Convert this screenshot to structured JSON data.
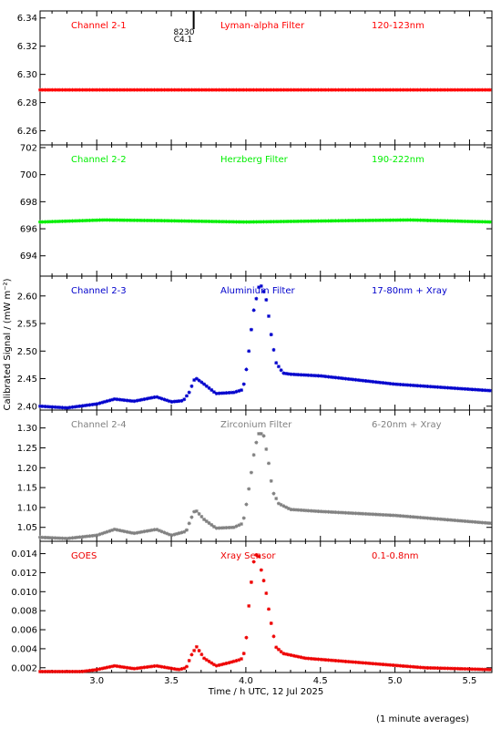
{
  "colors": {
    "axis": "#000000",
    "ch21": "#ff0000",
    "ch22": "#00ee00",
    "ch23": "#0000cc",
    "ch24": "#808080",
    "goes": "#ee0000"
  },
  "texts": {
    "xlabel": "Time / h UTC, 12 Jul 2025",
    "ylabel": "Calibrated Signal / (mW m⁻²)",
    "footer": "(1 minute averages)",
    "flare_id": "8230",
    "flare_class": "C4.1"
  },
  "chart_data": {
    "type": "scatter",
    "title": "",
    "xlabel": "Time / h UTC, 12 Jul 2025",
    "ylabel": "Calibrated Signal / (mW m⁻²)",
    "xlim": [
      2.62,
      5.65
    ],
    "x_ticks": [
      "3.0",
      "3.5",
      "4.0",
      "4.5",
      "5.0",
      "5.5"
    ],
    "x_tick_values": [
      3.0,
      3.5,
      4.0,
      4.5,
      5.0,
      5.5
    ],
    "flare_marker_time": 3.65,
    "panels": [
      {
        "channel": "Channel 2-1",
        "filter": "Lyman-alpha Filter",
        "band": "120-123nm",
        "color_key": "ch21",
        "ylim": [
          6.25,
          6.345
        ],
        "y_ticks": [
          "6.34",
          "6.32",
          "6.30",
          "6.28",
          "6.26"
        ],
        "y_tick_values": [
          6.34,
          6.32,
          6.3,
          6.28,
          6.26
        ],
        "points": [
          [
            2.62,
            6.289
          ],
          [
            3.0,
            6.289
          ],
          [
            3.5,
            6.289
          ],
          [
            4.0,
            6.289
          ],
          [
            4.5,
            6.289
          ],
          [
            5.0,
            6.289
          ],
          [
            5.65,
            6.289
          ]
        ]
      },
      {
        "channel": "Channel 2-2",
        "filter": "Herzberg Filter",
        "band": "190-222nm",
        "color_key": "ch22",
        "ylim": [
          692.5,
          702.2
        ],
        "y_ticks": [
          "702",
          "700",
          "698",
          "696",
          "694"
        ],
        "y_tick_values": [
          702,
          700,
          698,
          696,
          694
        ],
        "points": [
          [
            2.62,
            696.5
          ],
          [
            3.05,
            696.65
          ],
          [
            3.43,
            696.6
          ],
          [
            4.0,
            696.5
          ],
          [
            4.68,
            696.6
          ],
          [
            5.1,
            696.65
          ],
          [
            5.65,
            696.5
          ]
        ]
      },
      {
        "channel": "Channel 2-3",
        "filter": "Aluminium Filter",
        "band": "17-80nm + Xray",
        "color_key": "ch23",
        "ylim": [
          2.393,
          2.636
        ],
        "y_ticks": [
          "2.60",
          "2.55",
          "2.50",
          "2.45",
          "2.40"
        ],
        "y_tick_values": [
          2.6,
          2.55,
          2.5,
          2.45,
          2.4
        ],
        "points": [
          [
            2.62,
            2.4
          ],
          [
            2.8,
            2.397
          ],
          [
            3.0,
            2.404
          ],
          [
            3.12,
            2.413
          ],
          [
            3.25,
            2.409
          ],
          [
            3.4,
            2.417
          ],
          [
            3.5,
            2.408
          ],
          [
            3.58,
            2.41
          ],
          [
            3.62,
            2.425
          ],
          [
            3.66,
            2.452
          ],
          [
            3.72,
            2.44
          ],
          [
            3.8,
            2.423
          ],
          [
            3.92,
            2.425
          ],
          [
            3.98,
            2.43
          ],
          [
            4.0,
            2.46
          ],
          [
            4.02,
            2.5
          ],
          [
            4.05,
            2.57
          ],
          [
            4.09,
            2.62
          ],
          [
            4.11,
            2.617
          ],
          [
            4.14,
            2.59
          ],
          [
            4.17,
            2.53
          ],
          [
            4.2,
            2.48
          ],
          [
            4.25,
            2.46
          ],
          [
            4.3,
            2.458
          ],
          [
            4.5,
            2.455
          ],
          [
            5.0,
            2.44
          ],
          [
            5.65,
            2.428
          ]
        ]
      },
      {
        "channel": "Channel 2-4",
        "filter": "Zirconium Filter",
        "band": "6-20nm + Xray",
        "color_key": "ch24",
        "ylim": [
          1.015,
          1.345
        ],
        "y_ticks": [
          "1.30",
          "1.25",
          "1.20",
          "1.15",
          "1.10",
          "1.05"
        ],
        "y_tick_values": [
          1.3,
          1.25,
          1.2,
          1.15,
          1.1,
          1.05
        ],
        "points": [
          [
            2.62,
            1.025
          ],
          [
            2.8,
            1.022
          ],
          [
            3.0,
            1.03
          ],
          [
            3.12,
            1.045
          ],
          [
            3.25,
            1.035
          ],
          [
            3.4,
            1.045
          ],
          [
            3.5,
            1.03
          ],
          [
            3.6,
            1.04
          ],
          [
            3.63,
            1.07
          ],
          [
            3.66,
            1.095
          ],
          [
            3.72,
            1.07
          ],
          [
            3.8,
            1.048
          ],
          [
            3.92,
            1.05
          ],
          [
            3.98,
            1.06
          ],
          [
            4.0,
            1.1
          ],
          [
            4.03,
            1.17
          ],
          [
            4.06,
            1.25
          ],
          [
            4.09,
            1.29
          ],
          [
            4.12,
            1.28
          ],
          [
            4.15,
            1.22
          ],
          [
            4.18,
            1.14
          ],
          [
            4.22,
            1.11
          ],
          [
            4.3,
            1.095
          ],
          [
            4.5,
            1.09
          ],
          [
            5.0,
            1.08
          ],
          [
            5.65,
            1.06
          ]
        ]
      },
      {
        "channel": "GOES",
        "filter": "Xray Sensor",
        "band": "0.1-0.8nm",
        "color_key": "goes",
        "ylim": [
          0.0015,
          0.0153
        ],
        "y_ticks": [
          "0.014",
          "0.012",
          "0.010",
          "0.008",
          "0.006",
          "0.004",
          "0.002"
        ],
        "y_tick_values": [
          0.014,
          0.012,
          0.01,
          0.008,
          0.006,
          0.004,
          0.002
        ],
        "points": [
          [
            2.62,
            0.0016
          ],
          [
            2.9,
            0.0016
          ],
          [
            3.0,
            0.0018
          ],
          [
            3.12,
            0.0022
          ],
          [
            3.25,
            0.0019
          ],
          [
            3.4,
            0.0022
          ],
          [
            3.55,
            0.0018
          ],
          [
            3.6,
            0.002
          ],
          [
            3.64,
            0.0035
          ],
          [
            3.67,
            0.0042
          ],
          [
            3.72,
            0.003
          ],
          [
            3.8,
            0.0022
          ],
          [
            3.88,
            0.0025
          ],
          [
            3.95,
            0.0028
          ],
          [
            3.98,
            0.003
          ],
          [
            4.0,
            0.0045
          ],
          [
            4.02,
            0.0085
          ],
          [
            4.05,
            0.013
          ],
          [
            4.08,
            0.0143
          ],
          [
            4.1,
            0.0125
          ],
          [
            4.13,
            0.0105
          ],
          [
            4.16,
            0.0075
          ],
          [
            4.2,
            0.0042
          ],
          [
            4.25,
            0.0035
          ],
          [
            4.4,
            0.003
          ],
          [
            4.8,
            0.0025
          ],
          [
            5.2,
            0.002
          ],
          [
            5.65,
            0.0018
          ]
        ]
      }
    ]
  }
}
